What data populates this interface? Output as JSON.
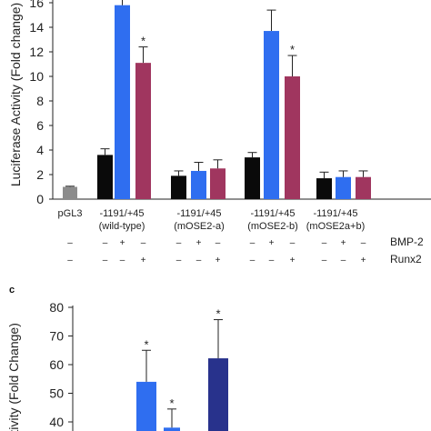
{
  "chart_data": [
    {
      "type": "bar",
      "ylabel": "Luciferase Activity (Fold change)",
      "ylim": [
        0,
        16
      ],
      "yticks": [
        0,
        2,
        4,
        6,
        8,
        10,
        12,
        14,
        16
      ],
      "group_labels": [
        {
          "line1": "pGL3",
          "line2": ""
        },
        {
          "line1": "-1191/+45",
          "line2": "(wild-type)"
        },
        {
          "line1": "-1191/+45",
          "line2": "(mOSE2-a)"
        },
        {
          "line1": "-1191/+45",
          "line2": "(mOSE2-b)"
        },
        {
          "line1": "-1191/+45",
          "line2": "(mOSE2a+b)"
        }
      ],
      "treatment_rows": [
        {
          "name": "BMP-2",
          "signs": [
            "–",
            "–",
            "+",
            "–",
            "–",
            "+",
            "–",
            "–",
            "+",
            "–",
            "–",
            "+",
            "–"
          ]
        },
        {
          "name": "Runx2",
          "signs": [
            "–",
            "–",
            "–",
            "+",
            "–",
            "–",
            "+",
            "–",
            "–",
            "+",
            "–",
            "–",
            "+"
          ]
        }
      ],
      "series_colors": {
        "gray": "#8c8c8c",
        "black": "#0a0a0a",
        "blue": "#2f6ef0",
        "maroon": "#a0365f"
      },
      "bars": [
        {
          "group": 0,
          "color": "gray",
          "value": 1.0,
          "error": 0.05,
          "star": false
        },
        {
          "group": 1,
          "color": "black",
          "value": 3.6,
          "error": 0.5,
          "star": false
        },
        {
          "group": 1,
          "color": "blue",
          "value": 15.8,
          "error": 1.0,
          "star": false
        },
        {
          "group": 1,
          "color": "maroon",
          "value": 11.1,
          "error": 1.3,
          "star": true,
          "star_text": "*"
        },
        {
          "group": 2,
          "color": "black",
          "value": 1.9,
          "error": 0.4,
          "star": false
        },
        {
          "group": 2,
          "color": "blue",
          "value": 2.3,
          "error": 0.7,
          "star": false
        },
        {
          "group": 2,
          "color": "maroon",
          "value": 2.5,
          "error": 0.7,
          "star": false
        },
        {
          "group": 3,
          "color": "black",
          "value": 3.4,
          "error": 0.4,
          "star": false
        },
        {
          "group": 3,
          "color": "blue",
          "value": 13.7,
          "error": 1.7,
          "star": false
        },
        {
          "group": 3,
          "color": "maroon",
          "value": 10.0,
          "error": 1.7,
          "star": true,
          "star_text": "*"
        },
        {
          "group": 4,
          "color": "black",
          "value": 1.7,
          "error": 0.5,
          "star": false
        },
        {
          "group": 4,
          "color": "blue",
          "value": 1.8,
          "error": 0.5,
          "star": false
        },
        {
          "group": 4,
          "color": "maroon",
          "value": 1.8,
          "error": 0.5,
          "star": false
        }
      ]
    },
    {
      "type": "bar",
      "panel_label": "c",
      "ylabel": "Activity (Fold Change)",
      "ylim": [
        40,
        80
      ],
      "yticks": [
        40,
        50,
        60,
        70,
        80
      ],
      "series_colors": {
        "blue": "#2f6ef0",
        "navy": "#28328c"
      },
      "bars": [
        {
          "color": "blue",
          "value": 54,
          "error": 11,
          "star": true,
          "star_text": "*"
        },
        {
          "color": "blue",
          "value": 38,
          "error": 6.5,
          "star": true,
          "star_text": "*"
        },
        {
          "color": "navy",
          "value": 62.2,
          "error": 13.5,
          "star": true,
          "star_text": "*"
        }
      ]
    }
  ]
}
